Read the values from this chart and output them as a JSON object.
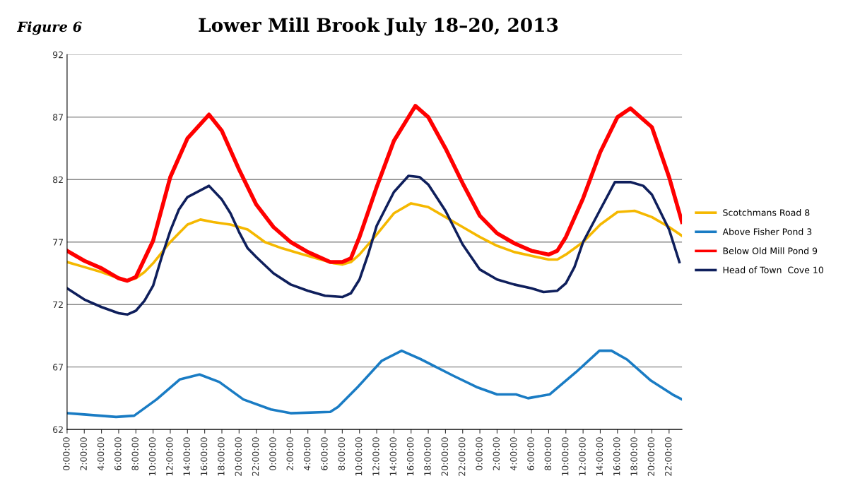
{
  "chart_data": {
    "type": "line",
    "title": "Lower Mill Brook July 18–20, 2013",
    "annotations": [
      "Figure 6"
    ],
    "xlim": [
      "2013-07-18T00:00",
      "2013-07-20T23:30"
    ],
    "ylim": [
      62,
      92
    ],
    "yticks": [
      62,
      67,
      72,
      77,
      82,
      87,
      92
    ],
    "xticks": [
      {
        "value": "2013-07-18T00:00",
        "label": "0:00:00"
      },
      {
        "value": "2013-07-18T02:00",
        "label": "2:00:00"
      },
      {
        "value": "2013-07-18T04:00",
        "label": "4:00:00"
      },
      {
        "value": "2013-07-18T06:00",
        "label": "6:00:00"
      },
      {
        "value": "2013-07-18T08:00",
        "label": "8:00:00"
      },
      {
        "value": "2013-07-18T10:00",
        "label": "10:00:00"
      },
      {
        "value": "2013-07-18T12:00",
        "label": "12:00:00"
      },
      {
        "value": "2013-07-18T14:00",
        "label": "14:00:00"
      },
      {
        "value": "2013-07-18T16:00",
        "label": "16:00:00"
      },
      {
        "value": "2013-07-18T18:00",
        "label": "18:00:00"
      },
      {
        "value": "2013-07-18T20:00",
        "label": "20:00:00"
      },
      {
        "value": "2013-07-18T22:00",
        "label": "22:00:00"
      },
      {
        "value": "2013-07-19T00:00",
        "label": "0:00:00"
      },
      {
        "value": "2013-07-19T02:00",
        "label": "2:00:00"
      },
      {
        "value": "2013-07-19T04:00",
        "label": "4:00:00"
      },
      {
        "value": "2013-07-19T06:00",
        "label": "6:00:00"
      },
      {
        "value": "2013-07-19T08:00",
        "label": "8:00:00"
      },
      {
        "value": "2013-07-19T10:00",
        "label": "10:00:00"
      },
      {
        "value": "2013-07-19T12:00",
        "label": "12:00:00"
      },
      {
        "value": "2013-07-19T14:00",
        "label": "14:00:00"
      },
      {
        "value": "2013-07-19T16:00",
        "label": "16:00:00"
      },
      {
        "value": "2013-07-19T18:00",
        "label": "18:00:00"
      },
      {
        "value": "2013-07-19T20:00",
        "label": "20:00:00"
      },
      {
        "value": "2013-07-19T22:00",
        "label": "22:00:00"
      },
      {
        "value": "2013-07-20T00:00",
        "label": "0:00:00"
      },
      {
        "value": "2013-07-20T02:00",
        "label": "2:00:00"
      },
      {
        "value": "2013-07-20T04:00",
        "label": "4:00:00"
      },
      {
        "value": "2013-07-20T06:00",
        "label": "6:00:00"
      },
      {
        "value": "2013-07-20T08:00",
        "label": "8:00:00"
      },
      {
        "value": "2013-07-20T10:00",
        "label": "10:00:00"
      },
      {
        "value": "2013-07-20T12:00",
        "label": "12:00:00"
      },
      {
        "value": "2013-07-20T14:00",
        "label": "14:00:00"
      },
      {
        "value": "2013-07-20T16:00",
        "label": "16:00:00"
      },
      {
        "value": "2013-07-20T18:00",
        "label": "18:00:00"
      },
      {
        "value": "2013-07-20T20:00",
        "label": "20:00:00"
      },
      {
        "value": "2013-07-20T22:00",
        "label": "22:00:00"
      }
    ],
    "grid": "y",
    "legend": "right",
    "marker": "none",
    "line_style": "solid",
    "series": [
      {
        "name": "Scotchmans Road 8",
        "color": "#f5b800",
        "x": [
          "2013-07-18T00:00",
          "2013-07-18T02:00",
          "2013-07-18T04:00",
          "2013-07-18T06:00",
          "2013-07-18T07:00",
          "2013-07-18T08:00",
          "2013-07-18T09:00",
          "2013-07-18T10:00",
          "2013-07-18T12:00",
          "2013-07-18T14:00",
          "2013-07-18T15:30",
          "2013-07-18T17:00",
          "2013-07-18T19:00",
          "2013-07-18T21:00",
          "2013-07-18T23:00",
          "2013-07-19T01:00",
          "2013-07-19T03:00",
          "2013-07-19T05:00",
          "2013-07-19T07:00",
          "2013-07-19T08:00",
          "2013-07-19T09:00",
          "2013-07-19T10:00",
          "2013-07-19T12:00",
          "2013-07-19T14:00",
          "2013-07-19T16:00",
          "2013-07-19T18:00",
          "2013-07-19T20:00",
          "2013-07-19T22:00",
          "2013-07-20T00:00",
          "2013-07-20T02:00",
          "2013-07-20T04:00",
          "2013-07-20T06:00",
          "2013-07-20T08:00",
          "2013-07-20T09:00",
          "2013-07-20T10:00",
          "2013-07-20T12:00",
          "2013-07-20T14:00",
          "2013-07-20T16:00",
          "2013-07-20T18:00",
          "2013-07-20T20:00",
          "2013-07-20T22:00",
          "2013-07-20T23:30"
        ],
        "values": [
          75.4,
          75.0,
          74.6,
          74.1,
          73.9,
          74.1,
          74.6,
          75.3,
          77.0,
          78.4,
          78.8,
          78.6,
          78.4,
          78.0,
          77.0,
          76.5,
          76.1,
          75.7,
          75.3,
          75.2,
          75.4,
          76.0,
          77.6,
          79.3,
          80.1,
          79.8,
          79.0,
          78.2,
          77.4,
          76.7,
          76.2,
          75.9,
          75.6,
          75.6,
          76.0,
          77.0,
          78.4,
          79.4,
          79.5,
          79.0,
          78.2,
          77.5
        ]
      },
      {
        "name": "Above Fisher Pond 3",
        "color": "#1a7cc4",
        "x": [
          "2013-07-18T00:00",
          "2013-07-18T02:00",
          "2013-07-18T05:42",
          "2013-07-18T07:48",
          "2013-07-18T10:24",
          "2013-07-18T13:06",
          "2013-07-18T15:24",
          "2013-07-18T17:42",
          "2013-07-18T20:30",
          "2013-07-18T23:42",
          "2013-07-19T02:00",
          "2013-07-19T06:36",
          "2013-07-19T07:30",
          "2013-07-19T09:48",
          "2013-07-19T12:36",
          "2013-07-19T14:54",
          "2013-07-19T17:12",
          "2013-07-19T20:54",
          "2013-07-19T23:36",
          "2013-07-20T02:00",
          "2013-07-20T04:12",
          "2013-07-20T05:36",
          "2013-07-20T08:06",
          "2013-07-20T11:12",
          "2013-07-20T13:54",
          "2013-07-20T15:18",
          "2013-07-20T17:06",
          "2013-07-20T19:54",
          "2013-07-20T22:24",
          "2013-07-20T23:30"
        ],
        "values": [
          63.3,
          63.2,
          63.0,
          63.1,
          64.4,
          66.0,
          66.4,
          65.8,
          64.4,
          63.6,
          63.3,
          63.4,
          63.8,
          65.4,
          67.5,
          68.3,
          67.6,
          66.3,
          65.4,
          64.8,
          64.8,
          64.5,
          64.8,
          66.6,
          68.3,
          68.3,
          67.6,
          65.9,
          64.8,
          64.4
        ]
      },
      {
        "name": "Below Old Mill Pond 9",
        "color": "#ff0000",
        "x": [
          "2013-07-18T00:00",
          "2013-07-18T02:00",
          "2013-07-18T04:00",
          "2013-07-18T06:00",
          "2013-07-18T07:00",
          "2013-07-18T08:00",
          "2013-07-18T10:00",
          "2013-07-18T12:00",
          "2013-07-18T14:00",
          "2013-07-18T16:30",
          "2013-07-18T18:00",
          "2013-07-18T20:00",
          "2013-07-18T22:00",
          "2013-07-19T00:00",
          "2013-07-19T02:00",
          "2013-07-19T04:00",
          "2013-07-19T06:36",
          "2013-07-19T08:00",
          "2013-07-19T09:00",
          "2013-07-19T10:00",
          "2013-07-19T12:00",
          "2013-07-19T14:00",
          "2013-07-19T16:30",
          "2013-07-19T18:00",
          "2013-07-19T20:00",
          "2013-07-19T22:00",
          "2013-07-20T00:00",
          "2013-07-20T02:00",
          "2013-07-20T04:00",
          "2013-07-20T06:00",
          "2013-07-20T08:00",
          "2013-07-20T09:00",
          "2013-07-20T10:00",
          "2013-07-20T12:00",
          "2013-07-20T14:00",
          "2013-07-20T16:00",
          "2013-07-20T17:30",
          "2013-07-20T20:00",
          "2013-07-20T22:00",
          "2013-07-20T23:30"
        ],
        "values": [
          76.3,
          75.5,
          74.9,
          74.1,
          73.9,
          74.2,
          77.1,
          82.2,
          85.3,
          87.2,
          85.9,
          82.8,
          80.0,
          78.2,
          77.0,
          76.2,
          75.4,
          75.4,
          75.7,
          77.4,
          81.4,
          85.1,
          87.9,
          87.0,
          84.5,
          81.7,
          79.1,
          77.7,
          76.9,
          76.3,
          76.0,
          76.3,
          77.4,
          80.5,
          84.2,
          87.0,
          87.7,
          86.2,
          82.2,
          78.6
        ]
      },
      {
        "name": "Head of Town  Cove 10",
        "color": "#0f1f5c",
        "x": [
          "2013-07-18T00:00",
          "2013-07-18T02:00",
          "2013-07-18T04:00",
          "2013-07-18T06:00",
          "2013-07-18T07:00",
          "2013-07-18T08:00",
          "2013-07-18T09:00",
          "2013-07-18T10:00",
          "2013-07-18T11:00",
          "2013-07-18T12:00",
          "2013-07-18T13:00",
          "2013-07-18T14:00",
          "2013-07-18T16:30",
          "2013-07-18T18:00",
          "2013-07-18T19:00",
          "2013-07-18T20:00",
          "2013-07-18T21:00",
          "2013-07-18T22:00",
          "2013-07-19T00:00",
          "2013-07-19T02:00",
          "2013-07-19T04:00",
          "2013-07-19T06:00",
          "2013-07-19T08:00",
          "2013-07-19T09:00",
          "2013-07-19T10:00",
          "2013-07-19T11:00",
          "2013-07-19T12:00",
          "2013-07-19T14:00",
          "2013-07-19T15:42",
          "2013-07-19T17:00",
          "2013-07-19T18:00",
          "2013-07-19T20:00",
          "2013-07-19T22:00",
          "2013-07-20T00:00",
          "2013-07-20T02:00",
          "2013-07-20T04:00",
          "2013-07-20T06:00",
          "2013-07-20T07:24",
          "2013-07-20T09:00",
          "2013-07-20T10:00",
          "2013-07-20T11:00",
          "2013-07-20T12:00",
          "2013-07-20T14:00",
          "2013-07-20T15:42",
          "2013-07-20T17:30",
          "2013-07-20T19:00",
          "2013-07-20T20:00",
          "2013-07-20T22:00",
          "2013-07-20T23:12"
        ],
        "values": [
          73.3,
          72.4,
          71.8,
          71.3,
          71.2,
          71.5,
          72.3,
          73.5,
          75.8,
          77.9,
          79.6,
          80.6,
          81.5,
          80.4,
          79.3,
          77.8,
          76.5,
          75.8,
          74.5,
          73.6,
          73.1,
          72.7,
          72.6,
          72.9,
          74.0,
          76.0,
          78.3,
          81.0,
          82.3,
          82.2,
          81.6,
          79.5,
          76.8,
          74.8,
          74.0,
          73.6,
          73.3,
          73.0,
          73.1,
          73.7,
          75.0,
          77.0,
          79.6,
          81.8,
          81.8,
          81.5,
          80.8,
          78.0,
          75.4
        ]
      }
    ]
  }
}
